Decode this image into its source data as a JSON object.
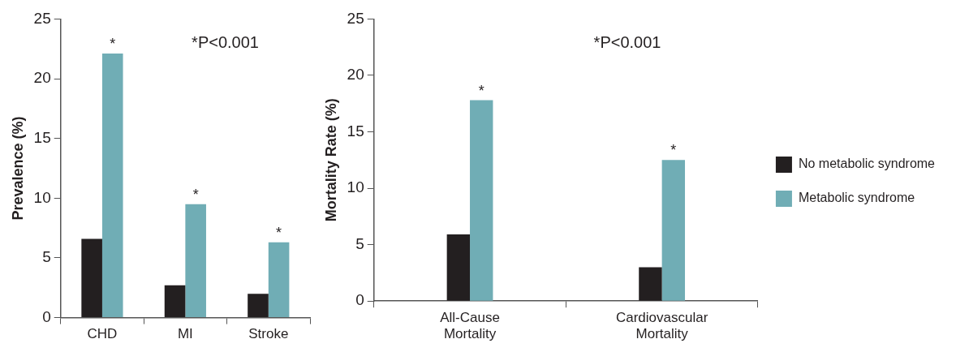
{
  "chart_data": [
    {
      "type": "bar",
      "categories": [
        "CHD",
        "MI",
        "Stroke"
      ],
      "ylabel": "Prevalence (%)",
      "ylim": [
        0,
        25
      ],
      "yticks": [
        0,
        5,
        10,
        15,
        20,
        25
      ],
      "grid": false,
      "series": [
        {
          "color": "#231f20",
          "values": [
            6.6,
            2.7,
            2.0
          ]
        },
        {
          "color": "#70adb5",
          "values": [
            22.1,
            9.5,
            6.3
          ]
        }
      ],
      "annotations": [
        "*P<0.001",
        "*",
        "*",
        "*"
      ]
    },
    {
      "type": "bar",
      "categories": [
        "All-Cause Mortality",
        "Cardiovascular Mortality"
      ],
      "ylabel": "Mortality Rate (%)",
      "ylim": [
        0,
        25
      ],
      "yticks": [
        0,
        5,
        10,
        15,
        20,
        25
      ],
      "grid": false,
      "legend": "right",
      "series": [
        {
          "name": "No metabolic syndrome",
          "color": "#231f20",
          "values": [
            5.9,
            3.0
          ]
        },
        {
          "name": "Metabolic syndrome",
          "color": "#70adb5",
          "values": [
            17.8,
            12.5
          ]
        }
      ],
      "annotations": [
        "*P<0.001",
        "*",
        "*"
      ]
    }
  ]
}
